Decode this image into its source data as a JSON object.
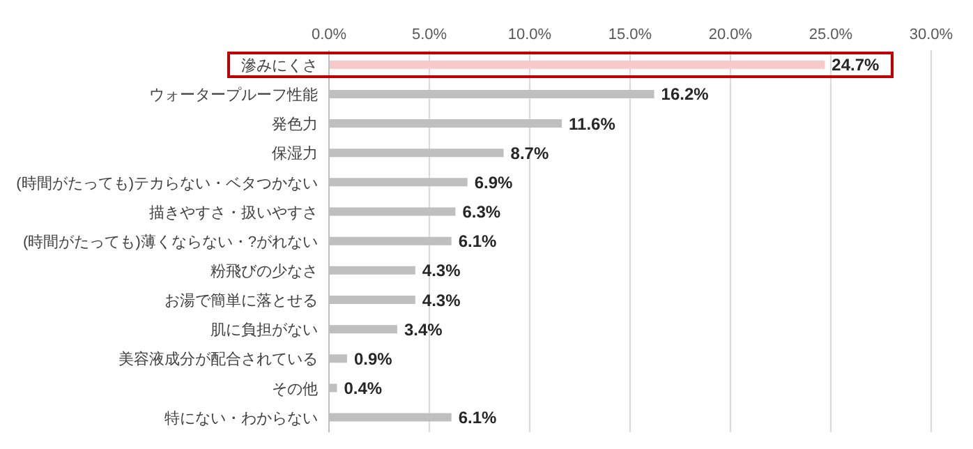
{
  "chart_data": {
    "type": "bar",
    "orientation": "horizontal",
    "categories": [
      "滲みにくさ",
      "ウォータープルーフ性能",
      "発色力",
      "保湿力",
      "(時間がたっても)テカらない・ベタつかない",
      "描きやすさ・扱いやすさ",
      "(時間がたっても)薄くならない・?がれない",
      "粉飛びの少なさ",
      "お湯で簡単に落とせる",
      "肌に負担がない",
      "美容液成分が配合されている",
      "その他",
      "特にない・わからない"
    ],
    "values": [
      24.7,
      16.2,
      11.6,
      8.7,
      6.9,
      6.3,
      6.1,
      4.3,
      4.3,
      3.4,
      0.9,
      0.4,
      6.1
    ],
    "colors": [
      "#f8c8ca",
      "#bfbfbf",
      "#bfbfbf",
      "#bfbfbf",
      "#bfbfbf",
      "#bfbfbf",
      "#bfbfbf",
      "#bfbfbf",
      "#bfbfbf",
      "#bfbfbf",
      "#bfbfbf",
      "#bfbfbf",
      "#bfbfbf"
    ],
    "value_labels": [
      "24.7%",
      "16.2%",
      "11.6%",
      "8.7%",
      "6.9%",
      "6.3%",
      "6.1%",
      "4.3%",
      "4.3%",
      "3.4%",
      "0.9%",
      "0.4%",
      "6.1%"
    ],
    "xlim": [
      0,
      30
    ],
    "xticks": [
      {
        "value": 0,
        "label": "0.0%"
      },
      {
        "value": 5,
        "label": "5.0%"
      },
      {
        "value": 10,
        "label": "10.0%"
      },
      {
        "value": 15,
        "label": "15.0%"
      },
      {
        "value": 20,
        "label": "20.0%"
      },
      {
        "value": 25,
        "label": "25.0%"
      },
      {
        "value": 30,
        "label": "30.0%"
      }
    ],
    "grid": "x"
  }
}
